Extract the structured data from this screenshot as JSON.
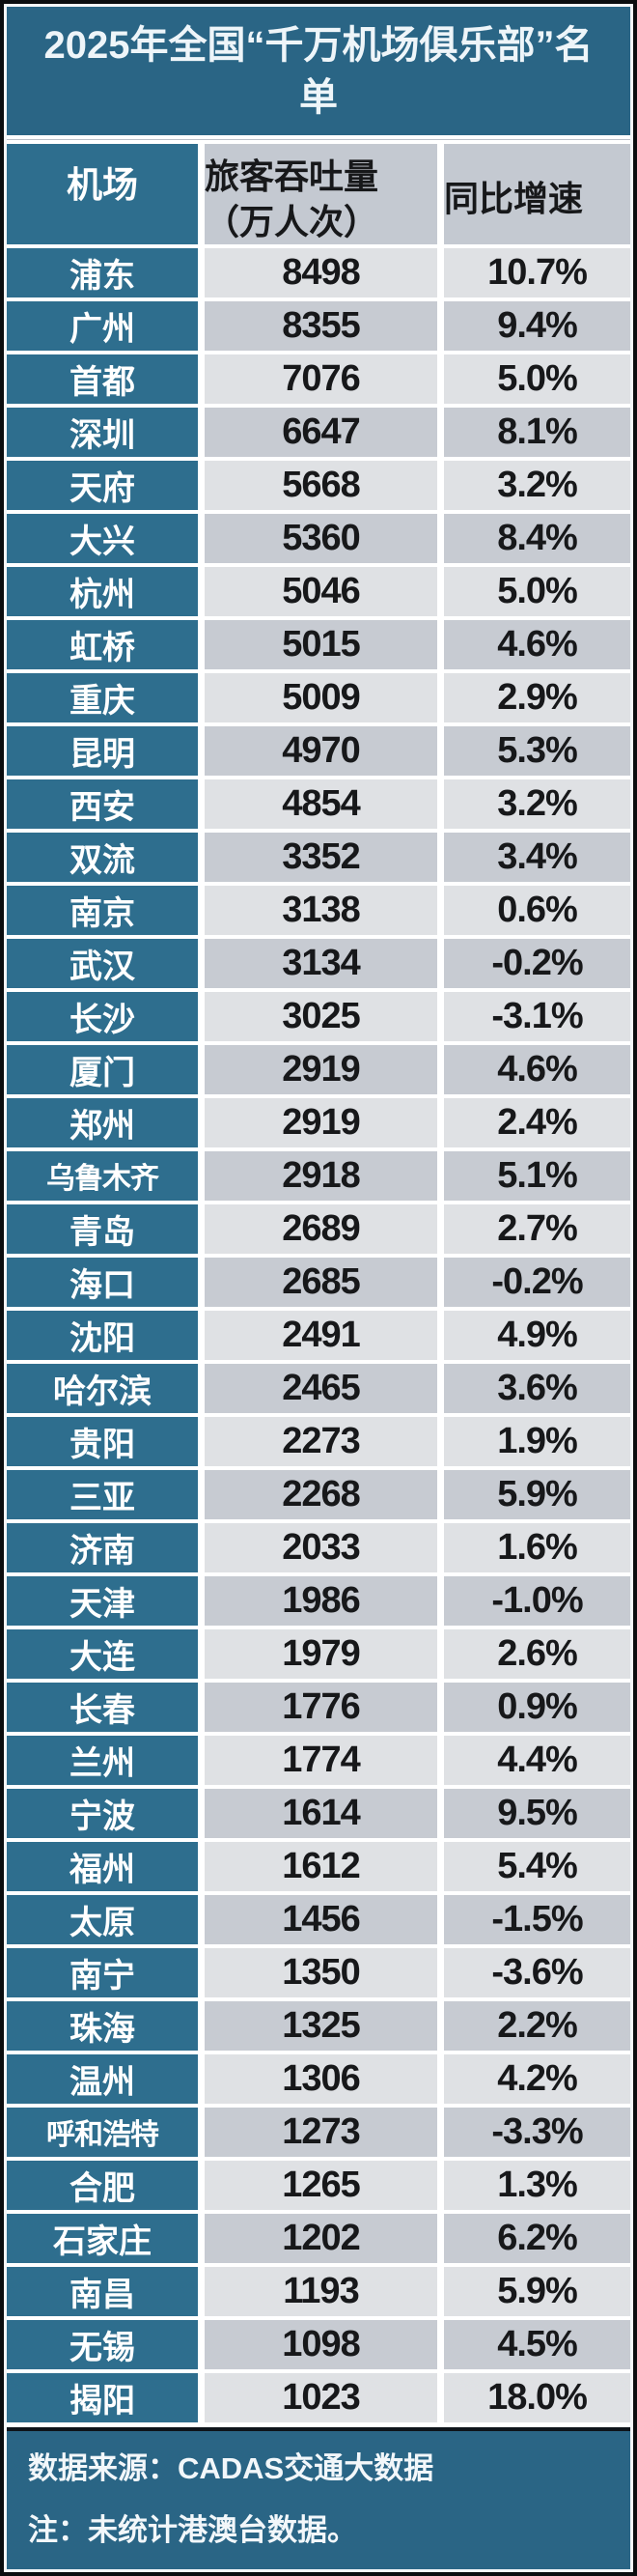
{
  "title": "2025年全国“千万机场俱乐部”名单",
  "table": {
    "headers": {
      "airport": "机场",
      "throughput_line1": "旅客吞吐量",
      "throughput_line2": "（万人次）",
      "growth": "同比增速"
    }
  },
  "footer": {
    "source": "数据来源：CADAS交通大数据",
    "note": "注：未统计港澳台数据。"
  },
  "colors": {
    "title_teal": "#2a6585",
    "cell_teal": "#2e6e8e",
    "row_light": "#dfe1e4",
    "row_dark": "#c7cbd2",
    "header_gray": "#c4c9d1",
    "border_black": "#0b0d0f"
  },
  "chart_data": {
    "type": "table",
    "title": "2025年全国“千万机场俱乐部”名单",
    "columns": [
      "机场",
      "旅客吞吐量（万人次）",
      "同比增速"
    ],
    "rows": [
      [
        "浦东",
        8498,
        "10.7%"
      ],
      [
        "广州",
        8355,
        "9.4%"
      ],
      [
        "首都",
        7076,
        "5.0%"
      ],
      [
        "深圳",
        6647,
        "8.1%"
      ],
      [
        "天府",
        5668,
        "3.2%"
      ],
      [
        "大兴",
        5360,
        "8.4%"
      ],
      [
        "杭州",
        5046,
        "5.0%"
      ],
      [
        "虹桥",
        5015,
        "4.6%"
      ],
      [
        "重庆",
        5009,
        "2.9%"
      ],
      [
        "昆明",
        4970,
        "5.3%"
      ],
      [
        "西安",
        4854,
        "3.2%"
      ],
      [
        "双流",
        3352,
        "3.4%"
      ],
      [
        "南京",
        3138,
        "0.6%"
      ],
      [
        "武汉",
        3134,
        "-0.2%"
      ],
      [
        "长沙",
        3025,
        "-3.1%"
      ],
      [
        "厦门",
        2919,
        "4.6%"
      ],
      [
        "郑州",
        2919,
        "2.4%"
      ],
      [
        "乌鲁木齐",
        2918,
        "5.1%"
      ],
      [
        "青岛",
        2689,
        "2.7%"
      ],
      [
        "海口",
        2685,
        "-0.2%"
      ],
      [
        "沈阳",
        2491,
        "4.9%"
      ],
      [
        "哈尔滨",
        2465,
        "3.6%"
      ],
      [
        "贵阳",
        2273,
        "1.9%"
      ],
      [
        "三亚",
        2268,
        "5.9%"
      ],
      [
        "济南",
        2033,
        "1.6%"
      ],
      [
        "天津",
        1986,
        "-1.0%"
      ],
      [
        "大连",
        1979,
        "2.6%"
      ],
      [
        "长春",
        1776,
        "0.9%"
      ],
      [
        "兰州",
        1774,
        "4.4%"
      ],
      [
        "宁波",
        1614,
        "9.5%"
      ],
      [
        "福州",
        1612,
        "5.4%"
      ],
      [
        "太原",
        1456,
        "-1.5%"
      ],
      [
        "南宁",
        1350,
        "-3.6%"
      ],
      [
        "珠海",
        1325,
        "2.2%"
      ],
      [
        "温州",
        1306,
        "4.2%"
      ],
      [
        "呼和浩特",
        1273,
        "-3.3%"
      ],
      [
        "合肥",
        1265,
        "1.3%"
      ],
      [
        "石家庄",
        1202,
        "6.2%"
      ],
      [
        "南昌",
        1193,
        "5.9%"
      ],
      [
        "无锡",
        1098,
        "4.5%"
      ],
      [
        "揭阳",
        1023,
        "18.0%"
      ]
    ]
  }
}
